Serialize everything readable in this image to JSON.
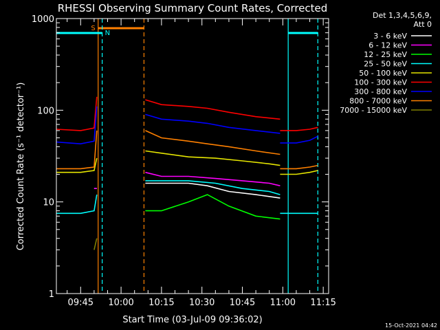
{
  "chart_data": {
    "type": "line",
    "title": "RHESSI Observing Summary Count Rates, Corrected",
    "xlabel": "Start Time (03-Jul-09 09:36:02)",
    "ylabel": "Corrected Count Rate (s⁻¹ detector⁻¹)",
    "y_scale": "log",
    "ylim": [
      1,
      1000
    ],
    "y_ticks": [
      {
        "value": 1,
        "label": "1"
      },
      {
        "value": 10,
        "label": "10"
      },
      {
        "value": 100,
        "label": "100"
      },
      {
        "value": 1000,
        "label": "1000"
      }
    ],
    "xlim": [
      "09:36",
      "11:17"
    ],
    "x_ticks": [
      "09:45",
      "10:00",
      "10:15",
      "10:30",
      "10:45",
      "11:00",
      "11:15"
    ],
    "legend": {
      "position": "right",
      "header": [
        "Det 1,3,4,5,6,9,",
        "Att 0"
      ],
      "entries": [
        {
          "label": "3 - 6 keV",
          "color": "#ffffff"
        },
        {
          "label": "6 - 12 keV",
          "color": "#ff00ff"
        },
        {
          "label": "12 - 25 keV",
          "color": "#00ff00"
        },
        {
          "label": "25 - 50 keV",
          "color": "#00ffff"
        },
        {
          "label": "50 - 100 keV",
          "color": "#e6e600"
        },
        {
          "label": "100 - 300 keV",
          "color": "#ff0000"
        },
        {
          "label": "300 - 800 keV",
          "color": "#0000ff"
        },
        {
          "label": "800 - 7000 keV",
          "color": "#ff8000"
        },
        {
          "label": "7000 - 15000 keV",
          "color": "#808000"
        }
      ]
    },
    "flags": {
      "saa": {
        "label": "S",
        "start": "09:51:30",
        "end": "10:08:30",
        "color": "#ff8000"
      },
      "night": {
        "label": "N",
        "color": "#00ffff",
        "intervals": [
          [
            "09:36",
            "09:53"
          ],
          [
            "11:02",
            "11:13"
          ]
        ]
      }
    },
    "series": [
      {
        "name": "3 - 6 keV",
        "color": "#ffffff",
        "segments": [
          {
            "x": [
              "09:50",
              "09:51"
            ],
            "y": [
              14,
              14
            ]
          },
          {
            "x": [
              "10:09",
              "10:15",
              "10:25",
              "10:32",
              "10:40",
              "10:50",
              "10:59"
            ],
            "y": [
              16,
              16,
              16,
              15,
              13,
              12,
              11
            ]
          }
        ]
      },
      {
        "name": "6 - 12 keV",
        "color": "#ff00ff",
        "segments": [
          {
            "x": [
              "09:50",
              "09:51"
            ],
            "y": [
              14,
              14
            ]
          },
          {
            "x": [
              "10:09",
              "10:15",
              "10:25",
              "10:35",
              "10:45",
              "10:55",
              "10:59"
            ],
            "y": [
              21,
              19,
              19,
              18,
              17,
              16,
              15
            ]
          }
        ]
      },
      {
        "name": "12 - 25 keV",
        "color": "#00ff00",
        "segments": [
          {
            "x": [
              "10:09",
              "10:15",
              "10:25",
              "10:32",
              "10:40",
              "10:50",
              "10:59"
            ],
            "y": [
              8,
              8,
              10,
              12,
              9,
              7,
              6.5
            ]
          }
        ]
      },
      {
        "name": "25 - 50 keV",
        "color": "#00ffff",
        "segments": [
          {
            "x": [
              "09:36",
              "09:40",
              "09:45",
              "09:50",
              "09:51"
            ],
            "y": [
              7.5,
              7.5,
              7.5,
              8,
              12
            ]
          },
          {
            "x": [
              "10:09",
              "10:15",
              "10:25",
              "10:35",
              "10:45",
              "10:55",
              "10:59"
            ],
            "y": [
              17,
              17,
              17,
              16,
              14,
              13,
              12
            ]
          },
          {
            "x": [
              "10:59",
              "11:05",
              "11:10",
              "11:13"
            ],
            "y": [
              7.5,
              7.5,
              7.5,
              7.5
            ]
          }
        ]
      },
      {
        "name": "50 - 100 keV",
        "color": "#e6e600",
        "segments": [
          {
            "x": [
              "09:36",
              "09:45",
              "09:50",
              "09:51"
            ],
            "y": [
              21,
              21,
              22,
              30
            ]
          },
          {
            "x": [
              "10:09",
              "10:15",
              "10:25",
              "10:35",
              "10:45",
              "10:55",
              "10:59"
            ],
            "y": [
              36,
              34,
              31,
              30,
              28,
              26,
              25
            ]
          },
          {
            "x": [
              "10:59",
              "11:05",
              "11:10",
              "11:13"
            ],
            "y": [
              20,
              20,
              21,
              22
            ]
          }
        ]
      },
      {
        "name": "100 - 300 keV",
        "color": "#ff0000",
        "segments": [
          {
            "x": [
              "09:36",
              "09:45",
              "09:50",
              "09:51"
            ],
            "y": [
              62,
              60,
              64,
              140
            ]
          },
          {
            "x": [
              "10:09",
              "10:15",
              "10:25",
              "10:32",
              "10:40",
              "10:50",
              "10:59"
            ],
            "y": [
              130,
              115,
              110,
              105,
              95,
              85,
              80
            ]
          },
          {
            "x": [
              "10:59",
              "11:05",
              "11:10",
              "11:13"
            ],
            "y": [
              60,
              60,
              62,
              65
            ]
          }
        ]
      },
      {
        "name": "300 - 800 keV",
        "color": "#0000ff",
        "segments": [
          {
            "x": [
              "09:36",
              "09:45",
              "09:50",
              "09:51"
            ],
            "y": [
              45,
              43,
              46,
              110
            ]
          },
          {
            "x": [
              "10:09",
              "10:15",
              "10:25",
              "10:32",
              "10:40",
              "10:50",
              "10:59"
            ],
            "y": [
              90,
              80,
              76,
              72,
              65,
              60,
              56
            ]
          },
          {
            "x": [
              "10:59",
              "11:05",
              "11:10",
              "11:13"
            ],
            "y": [
              44,
              44,
              47,
              52
            ]
          }
        ]
      },
      {
        "name": "800 - 7000 keV",
        "color": "#ff8000",
        "segments": [
          {
            "x": [
              "09:36",
              "09:45",
              "09:50",
              "09:51"
            ],
            "y": [
              23,
              23,
              24,
              60
            ]
          },
          {
            "x": [
              "10:09",
              "10:15",
              "10:25",
              "10:32",
              "10:40",
              "10:50",
              "10:59"
            ],
            "y": [
              60,
              50,
              46,
              43,
              40,
              36,
              33
            ]
          },
          {
            "x": [
              "10:59",
              "11:05",
              "11:10",
              "11:13"
            ],
            "y": [
              23,
              23,
              24,
              25
            ]
          }
        ]
      },
      {
        "name": "7000 - 15000 keV",
        "color": "#808000",
        "segments": [
          {
            "x": [
              "09:50",
              "09:51"
            ],
            "y": [
              3,
              4
            ]
          }
        ]
      }
    ]
  },
  "footer": {
    "timestamp": "15-Oct-2021 04:42"
  }
}
